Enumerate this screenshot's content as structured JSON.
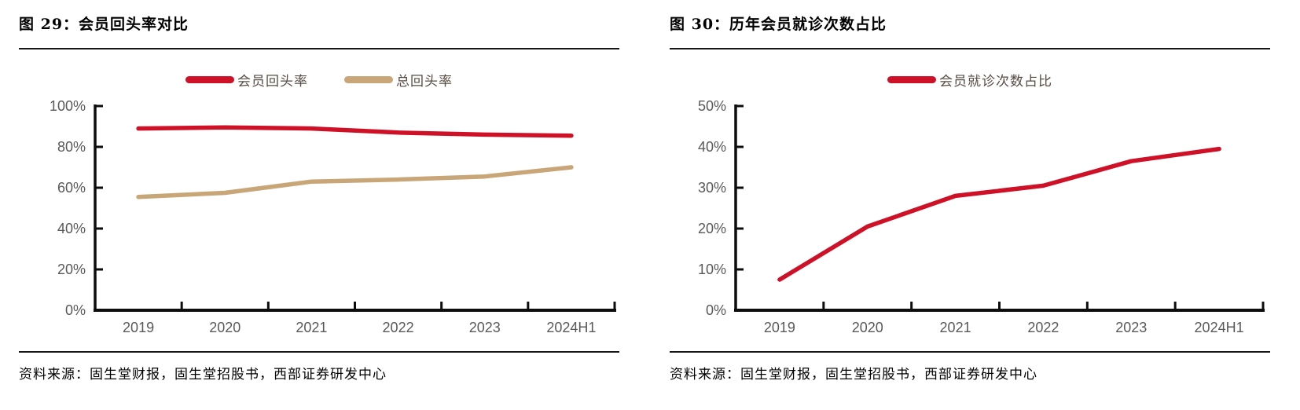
{
  "colors": {
    "accent_red": "#CE1126",
    "tan": "#C8A678",
    "axis_text": "#595959",
    "legend_text": "#574B42",
    "axis_line": "#0d0d0d",
    "rule_line": "#161616"
  },
  "panels": [
    {
      "title": "图 29：会员回头率对比",
      "source": "资料来源：固生堂财报，固生堂招股书，西部证券研发中心"
    },
    {
      "title": "图 30：历年会员就诊次数占比",
      "source": "资料来源：固生堂财报，固生堂招股书，西部证券研发中心"
    }
  ],
  "chart_data": [
    {
      "type": "line",
      "title": "会员回头率对比",
      "categories": [
        "2019",
        "2020",
        "2021",
        "2022",
        "2023",
        "2024H1"
      ],
      "series": [
        {
          "name": "会员回头率",
          "color": "#CE1126",
          "values": [
            89,
            89.5,
            89,
            87,
            86,
            85.5
          ]
        },
        {
          "name": "总回头率",
          "color": "#C8A678",
          "values": [
            55.5,
            57.5,
            63,
            64,
            65.5,
            70
          ]
        }
      ],
      "xlabel": "",
      "ylabel": "",
      "ylim": [
        0,
        100
      ],
      "ytick_step": 20,
      "ytick_format": "percent",
      "grid": false,
      "legend_position": "top"
    },
    {
      "type": "line",
      "title": "历年会员就诊次数占比",
      "categories": [
        "2019",
        "2020",
        "2021",
        "2022",
        "2023",
        "2024H1"
      ],
      "series": [
        {
          "name": "会员就诊次数占比",
          "color": "#CE1126",
          "values": [
            7.5,
            20.5,
            28,
            30.5,
            36.5,
            39.5
          ]
        }
      ],
      "xlabel": "",
      "ylabel": "",
      "ylim": [
        0,
        50
      ],
      "ytick_step": 10,
      "ytick_format": "percent",
      "grid": false,
      "legend_position": "top"
    }
  ]
}
